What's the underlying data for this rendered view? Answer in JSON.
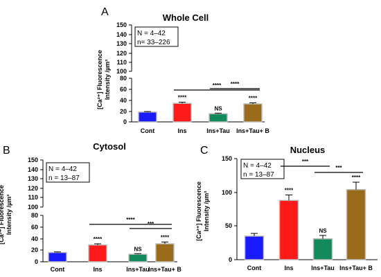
{
  "figure": {
    "panels": {
      "A": {
        "letter": "A",
        "title": "Whole Cell",
        "info_n": "N = 4–42",
        "info_cells": "n= 33–226"
      },
      "B": {
        "letter": "B",
        "title": "Cytosol",
        "info_n": "N = 4–42",
        "info_cells": "n = 13–87"
      },
      "C": {
        "letter": "C",
        "title": "Nucleus",
        "info_n": "N = 4–42",
        "info_cells": "n = 13–87"
      }
    },
    "ylabel_line1": "[Ca²⁺] Fluorescence",
    "ylabel_line2": "Intensity /µm³"
  },
  "chart_data": [
    {
      "id": "A",
      "type": "bar",
      "title": "Whole Cell",
      "ylabel": "[Ca2+] Fluorescence Intensity /µm3",
      "categories": [
        "Cont",
        "Ins",
        "Ins+Tau",
        "Ins+Tau+ B"
      ],
      "values": [
        18,
        34,
        15,
        33
      ],
      "errors": [
        1,
        2,
        1,
        2
      ],
      "colors": [
        "#1a1aff",
        "#ff1a1a",
        "#138a5b",
        "#9b6b1c"
      ],
      "bar_annotations": [
        "",
        "****",
        "NS",
        "****"
      ],
      "ylim": [
        0,
        150
      ],
      "axis_break": [
        80,
        100
      ],
      "ticks": [
        0,
        20,
        40,
        60,
        80,
        100,
        110,
        120,
        130,
        140,
        150
      ],
      "comparisons": [
        {
          "from": 1,
          "to": 3,
          "label": "****"
        },
        {
          "from": 2,
          "to": 3,
          "label": "****"
        }
      ]
    },
    {
      "id": "B",
      "type": "bar",
      "title": "Cytosol",
      "ylabel": "[Ca2+] Fluorescence Intensity /µm3",
      "categories": [
        "Cont",
        "Ins",
        "Ins+Tau",
        "Ins+Tau+ B"
      ],
      "values": [
        16,
        29,
        13,
        31
      ],
      "errors": [
        1,
        2,
        1,
        3
      ],
      "colors": [
        "#1a1aff",
        "#ff1a1a",
        "#138a5b",
        "#9b6b1c"
      ],
      "bar_annotations": [
        "",
        "****",
        "NS",
        "****"
      ],
      "ylim": [
        0,
        150
      ],
      "axis_break": [
        80,
        100
      ],
      "ticks": [
        0,
        20,
        40,
        60,
        80,
        100,
        110,
        120,
        130,
        140,
        150
      ],
      "comparisons": [
        {
          "from": 1,
          "to": 3,
          "label": "****"
        },
        {
          "from": 2,
          "to": 3,
          "label": "***"
        }
      ]
    },
    {
      "id": "C",
      "type": "bar",
      "title": "Nucleus",
      "ylabel": "[Ca2+] Fluorescence Intensity /µm3",
      "categories": [
        "Cont",
        "Ins",
        "Ins+Tau",
        "Ins+Tau+ B"
      ],
      "values": [
        35,
        88,
        31,
        104
      ],
      "errors": [
        4,
        8,
        5,
        11
      ],
      "colors": [
        "#1a1aff",
        "#ff1a1a",
        "#138a5b",
        "#9b6b1c"
      ],
      "bar_annotations": [
        "",
        "****",
        "NS",
        "****"
      ],
      "ylim": [
        0,
        150
      ],
      "ticks": [
        0,
        50,
        100,
        150
      ],
      "comparisons": [
        {
          "from": 1,
          "to": 2,
          "label": "***"
        },
        {
          "from": 2,
          "to": 3,
          "label": "***"
        }
      ]
    }
  ]
}
